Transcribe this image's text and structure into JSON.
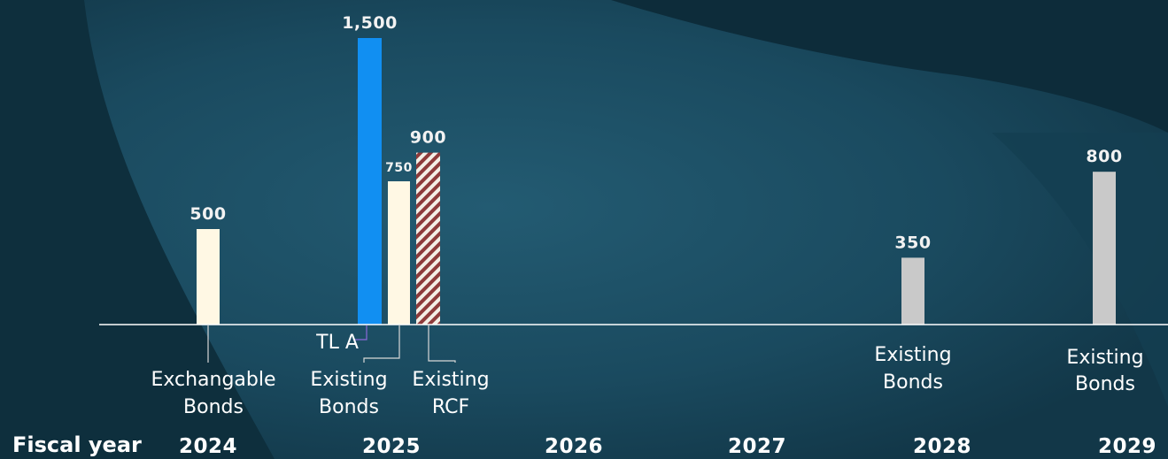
{
  "colors": {
    "bg_dark": "#0f2f3d",
    "bg_mid": "#1b4d62",
    "cream": "#fff8e4",
    "blue": "#118ff2",
    "grey": "#c9c9c9",
    "hatch_red": "#8e3b3b",
    "axis": "#ffffff",
    "leader_purple": "#8a6ad9"
  },
  "axis_title": "Fiscal year",
  "chart_data": {
    "type": "bar",
    "title": "",
    "xlabel": "Fiscal year",
    "ylabel": "",
    "categories": [
      "2024",
      "2025",
      "2026",
      "2027",
      "2028",
      "2029"
    ],
    "ylim": [
      0,
      1500
    ],
    "grid": false,
    "bars": [
      {
        "id": "exch-2024",
        "year": "2024",
        "value": 500,
        "value_label": "500",
        "color": "cream",
        "label_lines": [
          "Exchangable",
          "Bonds"
        ]
      },
      {
        "id": "tla-2025",
        "year": "2025",
        "value": 1500,
        "value_label": "1,500",
        "color": "blue",
        "label_lines": [
          "TL A"
        ]
      },
      {
        "id": "bonds-2025",
        "year": "2025",
        "value": 750,
        "value_label": "750",
        "color": "cream",
        "label_lines": [
          "Existing",
          "Bonds"
        ]
      },
      {
        "id": "rcf-2025",
        "year": "2025",
        "value": 900,
        "value_label": "900",
        "color": "hatched",
        "label_lines": [
          "Existing",
          "RCF"
        ]
      },
      {
        "id": "bonds-2028",
        "year": "2028",
        "value": 350,
        "value_label": "350",
        "color": "grey",
        "label_lines": [
          "Existing",
          "Bonds"
        ]
      },
      {
        "id": "bonds-2029",
        "year": "2029",
        "value": 800,
        "value_label": "800",
        "color": "grey",
        "label_lines": [
          "Existing",
          "Bonds"
        ]
      }
    ]
  }
}
